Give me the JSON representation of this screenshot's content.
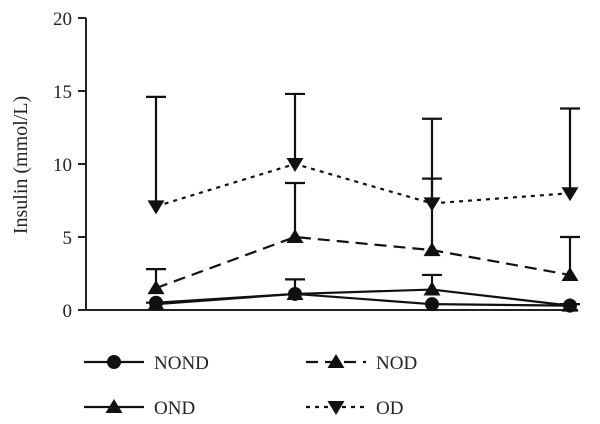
{
  "chart_data": {
    "type": "line",
    "title": "",
    "ylabel": "Insulin (mmol/L)",
    "xlabel": "",
    "ylim": [
      0,
      20
    ],
    "yticks": [
      0,
      5,
      10,
      15,
      20
    ],
    "x": [
      1,
      2,
      3,
      4
    ],
    "grid": false,
    "legend_position": "bottom",
    "series": [
      {
        "name": "NOND",
        "marker": "circle",
        "dash": "solid",
        "values": [
          0.5,
          1.1,
          0.4,
          0.3
        ],
        "err": [
          0,
          0,
          0,
          0
        ]
      },
      {
        "name": "NOD",
        "marker": "triangle-up",
        "dash": "dashed",
        "values": [
          1.5,
          5.0,
          4.1,
          2.4
        ],
        "err": [
          1.3,
          3.7,
          4.9,
          2.6
        ]
      },
      {
        "name": "OND",
        "marker": "triangle-up",
        "dash": "solid",
        "values": [
          0.4,
          1.1,
          1.4,
          0.3
        ],
        "err": [
          0.1,
          1.0,
          1.0,
          0.1
        ]
      },
      {
        "name": "OD",
        "marker": "triangle-down",
        "dash": "dotted",
        "values": [
          7.1,
          10.0,
          7.3,
          8.0
        ],
        "err": [
          7.5,
          4.8,
          5.8,
          5.8
        ]
      }
    ]
  }
}
